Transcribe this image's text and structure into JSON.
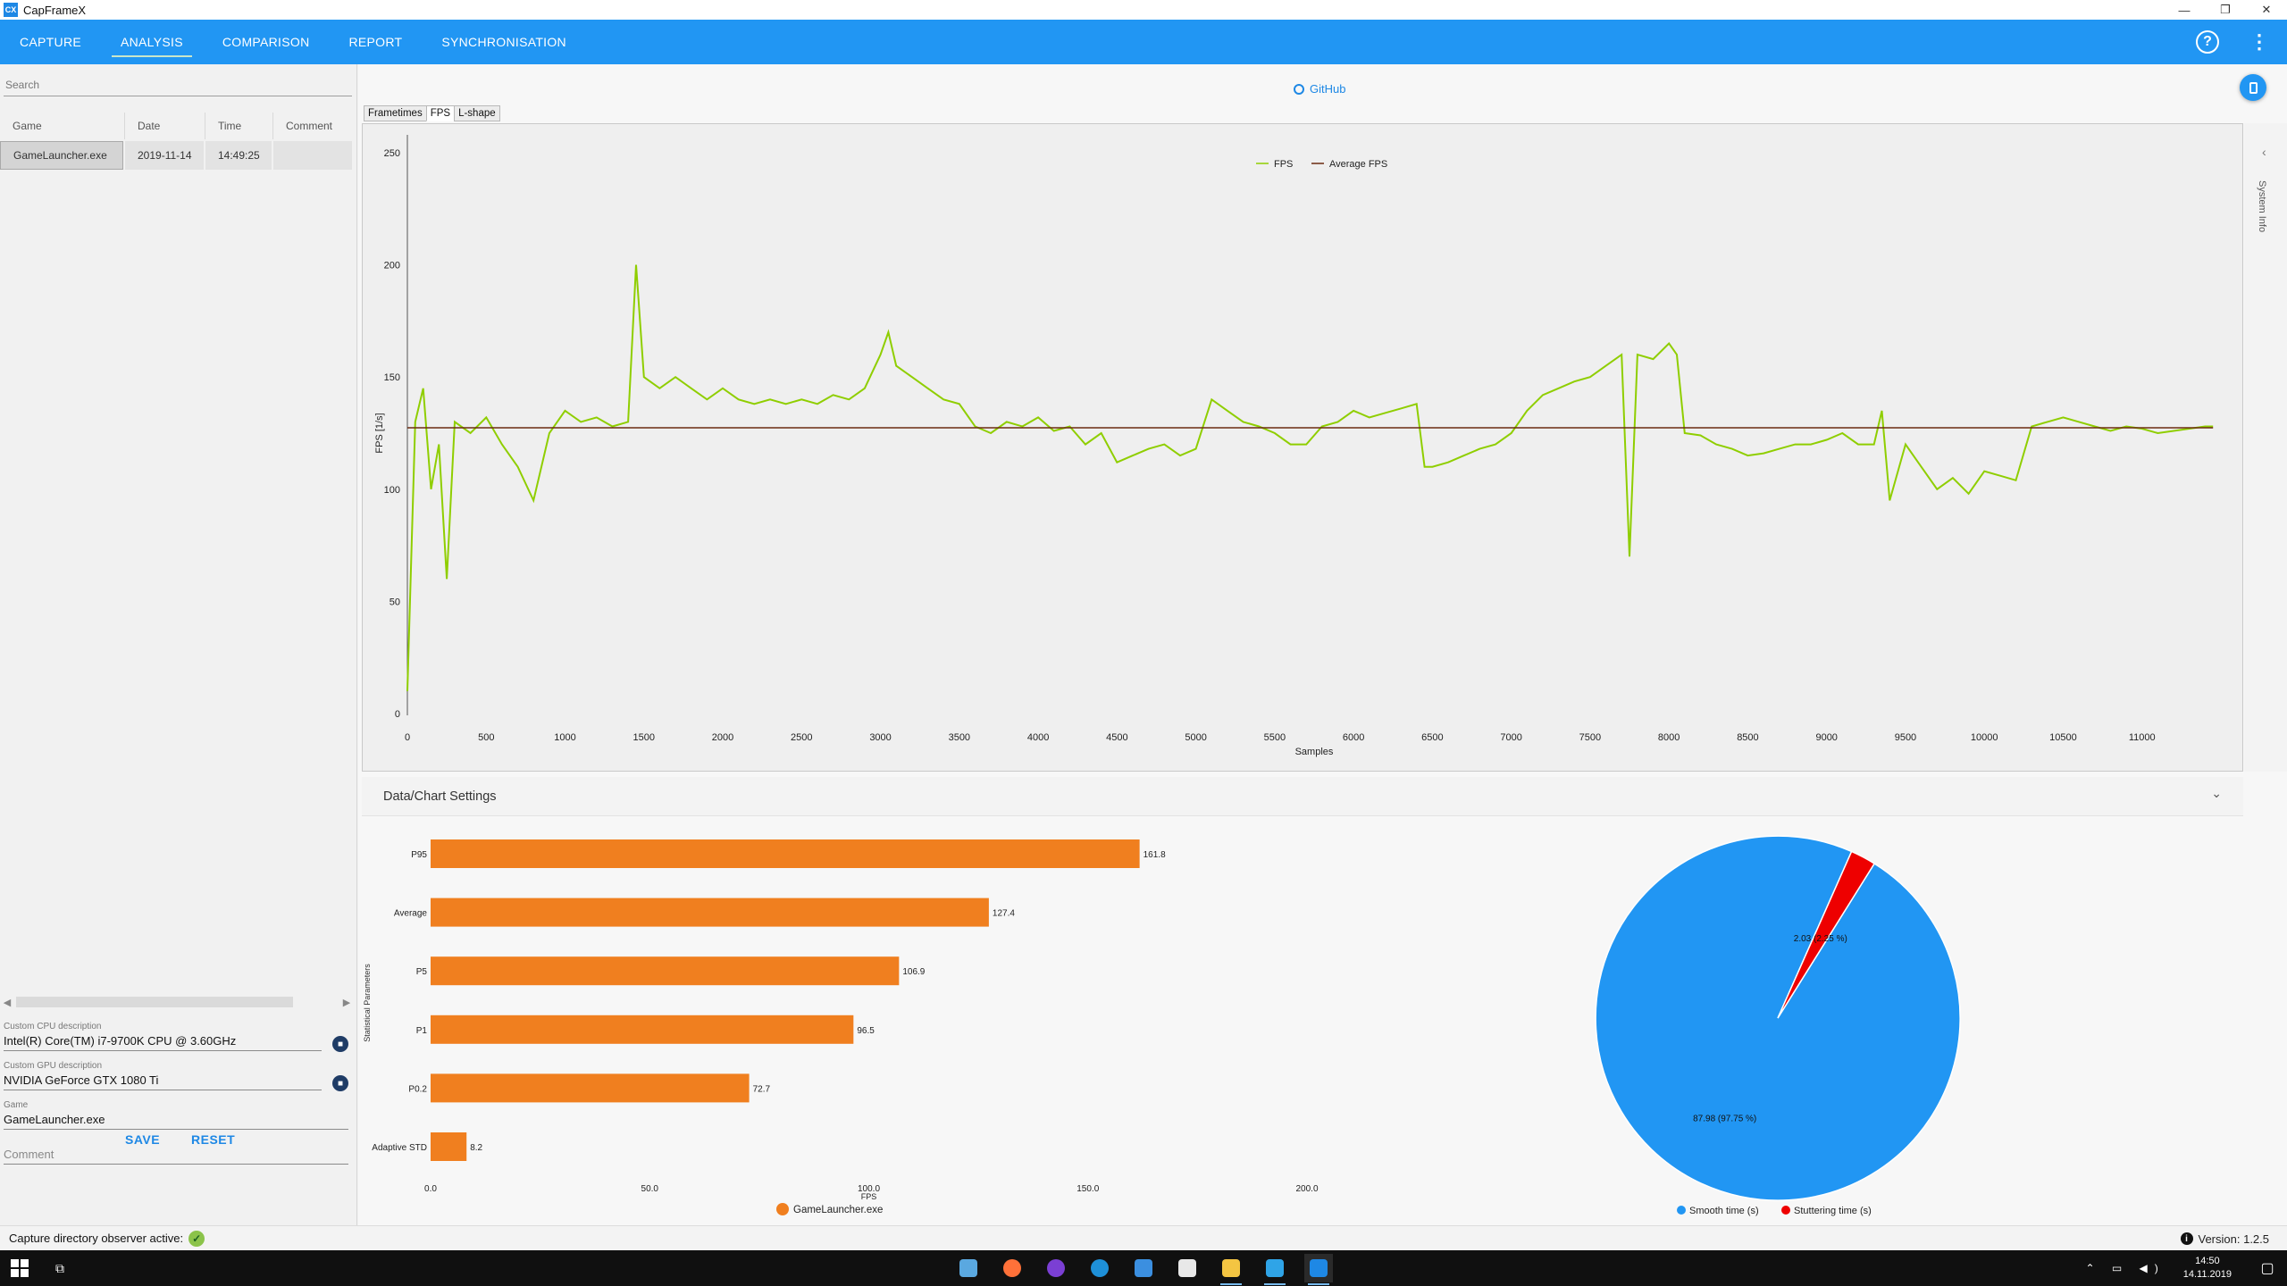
{
  "window": {
    "title": "CapFrameX",
    "app_icon": "CX",
    "controls": [
      "—",
      "❐",
      "✕"
    ]
  },
  "nav": {
    "tabs": [
      "CAPTURE",
      "ANALYSIS",
      "COMPARISON",
      "REPORT",
      "SYNCHRONISATION"
    ],
    "active": "ANALYSIS",
    "help_icon": "?",
    "more_icon": "⋮",
    "accent": "#2196f3"
  },
  "sidebar": {
    "search_placeholder": "Search",
    "columns": [
      "Game",
      "Date",
      "Time",
      "Comment"
    ],
    "records": [
      {
        "game": "GameLauncher.exe",
        "date": "2019-11-14",
        "time": "14:49:25",
        "comment": ""
      }
    ],
    "cpu_label": "Custom CPU description",
    "cpu_value": "Intel(R) Core(TM) i7-9700K CPU @ 3.60GHz",
    "gpu_label": "Custom GPU description",
    "gpu_value": "NVIDIA GeForce GTX 1080 Ti",
    "game_label": "Game",
    "game_value": "GameLauncher.exe",
    "comment_placeholder": "Comment",
    "save_label": "SAVE",
    "reset_label": "RESET"
  },
  "main": {
    "github_label": "GitHub",
    "chart_tabs": [
      "Frametimes",
      "FPS",
      "L-shape"
    ],
    "active_chart_tab": "FPS",
    "system_info_label": "System Info",
    "settings_title": "Data/Chart Settings"
  },
  "status": {
    "text": "Capture directory observer active:",
    "version": "Version: 1.2.5"
  },
  "taskbar": {
    "time": "14:50",
    "date": "14.11.2019",
    "apps": [
      "explorer-icon",
      "firefox-icon",
      "podcast-icon",
      "edge-icon",
      "messenger-icon",
      "app-icon",
      "folder-icon",
      "remote-icon",
      "capframex-icon"
    ]
  },
  "chart_data": [
    {
      "type": "line",
      "xlabel": "Samples",
      "ylabel": "FPS [1/s]",
      "xlim": [
        0,
        11500
      ],
      "ylim": [
        0,
        250
      ],
      "xticks": [
        0,
        500,
        1000,
        1500,
        2000,
        2500,
        3000,
        3500,
        4000,
        4500,
        5000,
        5500,
        6000,
        6500,
        7000,
        7500,
        8000,
        8500,
        9000,
        9500,
        10000,
        10500,
        11000
      ],
      "yticks": [
        0,
        50,
        100,
        150,
        200,
        250
      ],
      "legend": "top-center",
      "grid": false,
      "series": [
        {
          "name": "FPS",
          "color": "#8fce00",
          "x": [
            0,
            50,
            100,
            150,
            200,
            250,
            300,
            400,
            500,
            600,
            700,
            800,
            900,
            1000,
            1100,
            1200,
            1300,
            1400,
            1450,
            1500,
            1600,
            1700,
            1800,
            1900,
            2000,
            2100,
            2200,
            2300,
            2400,
            2500,
            2600,
            2700,
            2800,
            2900,
            3000,
            3050,
            3100,
            3200,
            3300,
            3400,
            3500,
            3600,
            3700,
            3800,
            3900,
            4000,
            4100,
            4200,
            4300,
            4400,
            4500,
            4600,
            4700,
            4800,
            4900,
            5000,
            5100,
            5200,
            5300,
            5400,
            5500,
            5600,
            5700,
            5800,
            5900,
            6000,
            6100,
            6200,
            6300,
            6400,
            6450,
            6500,
            6600,
            6700,
            6800,
            6900,
            7000,
            7100,
            7200,
            7300,
            7400,
            7500,
            7600,
            7700,
            7750,
            7800,
            7900,
            8000,
            8050,
            8100,
            8200,
            8300,
            8400,
            8500,
            8600,
            8700,
            8800,
            8900,
            9000,
            9100,
            9200,
            9300,
            9350,
            9400,
            9500,
            9600,
            9700,
            9800,
            9900,
            10000,
            10100,
            10200,
            10300,
            10400,
            10500,
            10600,
            10700,
            10800,
            10900,
            11000,
            11100,
            11200,
            11300,
            11400,
            11450
          ],
          "values": [
            10,
            130,
            145,
            100,
            120,
            60,
            130,
            125,
            132,
            120,
            110,
            95,
            125,
            135,
            130,
            132,
            128,
            130,
            200,
            150,
            145,
            150,
            145,
            140,
            145,
            140,
            138,
            140,
            138,
            140,
            138,
            142,
            140,
            145,
            160,
            170,
            155,
            150,
            145,
            140,
            138,
            128,
            125,
            130,
            128,
            132,
            126,
            128,
            120,
            125,
            112,
            115,
            118,
            120,
            115,
            118,
            140,
            135,
            130,
            128,
            125,
            120,
            120,
            128,
            130,
            135,
            132,
            134,
            136,
            138,
            110,
            110,
            112,
            115,
            118,
            120,
            125,
            135,
            142,
            145,
            148,
            150,
            155,
            160,
            70,
            160,
            158,
            165,
            160,
            125,
            124,
            120,
            118,
            115,
            116,
            118,
            120,
            120,
            122,
            125,
            120,
            120,
            135,
            95,
            120,
            110,
            100,
            105,
            98,
            108,
            106,
            104,
            128,
            130,
            132,
            130,
            128,
            126,
            128,
            127,
            125,
            126,
            127,
            128,
            128
          ]
        },
        {
          "name": "Average FPS",
          "color": "#6b2b10",
          "x": [
            0,
            11450
          ],
          "values": [
            127.4,
            127.4
          ]
        }
      ]
    },
    {
      "type": "bar",
      "orientation": "horizontal",
      "categories": [
        "P95",
        "Average",
        "P5",
        "P1",
        "P0.2",
        "Adaptive STD"
      ],
      "values": [
        161.8,
        127.4,
        106.9,
        96.5,
        72.7,
        8.2
      ],
      "value_labels": [
        "161.8",
        "127.4",
        "106.9",
        "96.5",
        "72.7",
        "8.2"
      ],
      "xlabel": "FPS",
      "ylabel": "Statistical Parameters",
      "xlim": [
        0,
        200
      ],
      "xticks": [
        "0.0",
        "50.0",
        "100.0",
        "150.0",
        "200.0"
      ],
      "color": "#f07f1f",
      "series": [
        {
          "name": "GameLauncher.exe",
          "values": [
            161.8,
            127.4,
            106.9,
            96.5,
            72.7,
            8.2
          ]
        }
      ],
      "legend": "bottom-center"
    },
    {
      "type": "pie",
      "categories": [
        "Smooth time (s)",
        "Stuttering time (s)"
      ],
      "values": [
        87.98,
        2.03
      ],
      "value_labels": [
        "87.98 (97.75 %)",
        "2.03 (2.25 %)"
      ],
      "colors": [
        "#2196f3",
        "#ee0000"
      ],
      "legend": "bottom-center"
    }
  ]
}
